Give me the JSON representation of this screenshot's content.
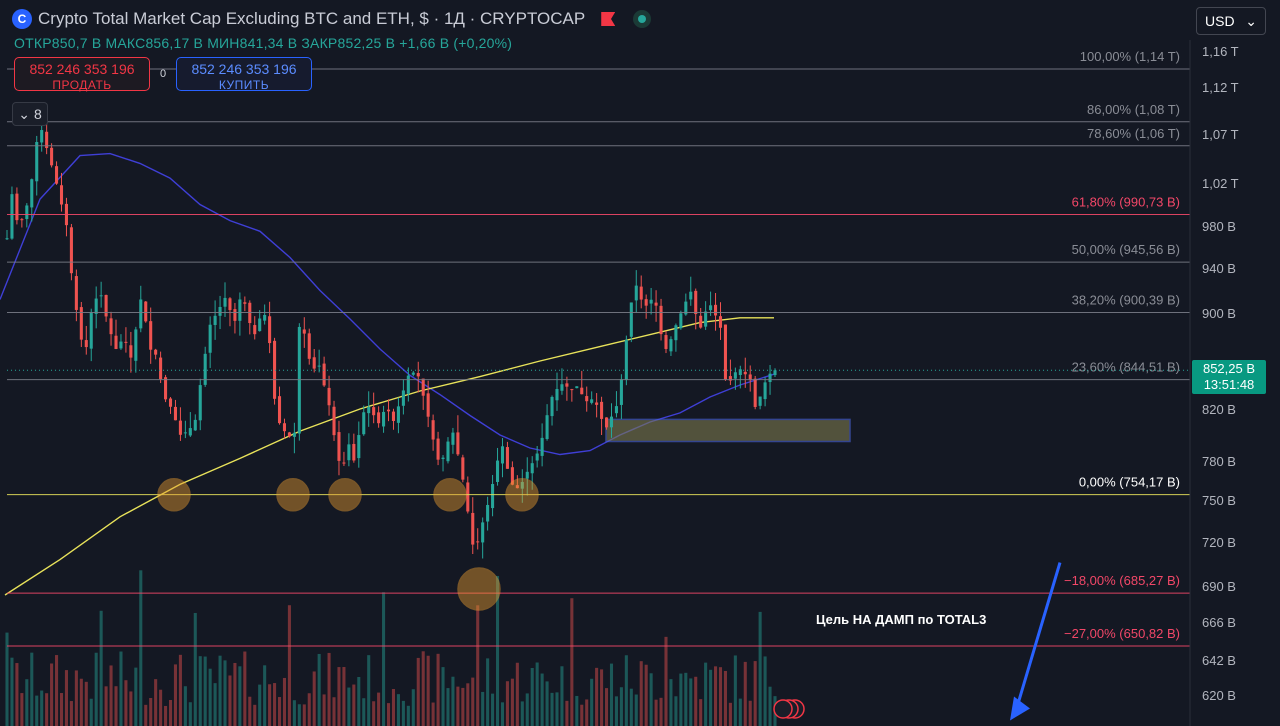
{
  "header": {
    "logo_glyph": "C",
    "title": "Crypto Total Market Cap Excluding BTC and ETH, $ · 1Д · CRYPTOCAP",
    "ohlc": {
      "open_label": "ОТКР",
      "open_value": "850,7 B",
      "high_label": "МАКС",
      "high_value": "856,17 B",
      "low_label": "МИН",
      "low_value": "841,34 B",
      "close_label": "ЗАКР",
      "close_value": "852,25 B",
      "change": "+1,66 B (+0,20%)"
    }
  },
  "trade": {
    "sell_price": "852 246 353 196",
    "sell_label": "ПРОДАТЬ",
    "buy_price": "852 246 353 196",
    "buy_label": "КУПИТЬ",
    "spread": "0"
  },
  "indicators_toggle": {
    "count": "8"
  },
  "currency": {
    "label": "USD"
  },
  "last_price": {
    "value": "852,25 B",
    "countdown": "13:51:48"
  },
  "colors": {
    "up": "#26a69a",
    "down": "#ef5350",
    "ma_fast": "#3f3fd6",
    "ma_slow": "#e8e25a",
    "fib_red": "#f24768",
    "background": "#141823"
  },
  "chart_data": {
    "type": "candlestick",
    "timeframe": "1Д",
    "unit": "B",
    "ylim": [
      605,
      1175
    ],
    "y_ticks": [
      {
        "value": 1160,
        "label": "1,16 T"
      },
      {
        "value": 1120,
        "label": "1,12 T"
      },
      {
        "value": 1070,
        "label": "1,07 T"
      },
      {
        "value": 1020,
        "label": "1,02 T"
      },
      {
        "value": 980,
        "label": "980 B"
      },
      {
        "value": 940,
        "label": "940 B"
      },
      {
        "value": 900,
        "label": "900 B"
      },
      {
        "value": 820,
        "label": "820 B"
      },
      {
        "value": 780,
        "label": "780 B"
      },
      {
        "value": 750,
        "label": "750 B"
      },
      {
        "value": 720,
        "label": "720 B"
      },
      {
        "value": 690,
        "label": "690 B"
      },
      {
        "value": 666,
        "label": "666 B"
      },
      {
        "value": 642,
        "label": "642 B"
      },
      {
        "value": 620,
        "label": "620 B"
      }
    ],
    "fib_levels": [
      {
        "label": "100,00% (1,14 T)",
        "value": 1140,
        "color": "#787b86"
      },
      {
        "label": "86,00% (1,08 T)",
        "value": 1083,
        "color": "#787b86"
      },
      {
        "label": "78,60% (1,06 T)",
        "value": 1058,
        "color": "#787b86"
      },
      {
        "label": "61,80% (990,73 B)",
        "value": 990.73,
        "color": "#f24768"
      },
      {
        "label": "50,00% (945,56 B)",
        "value": 945.56,
        "color": "#787b86"
      },
      {
        "label": "38,20% (900,39 B)",
        "value": 900.39,
        "color": "#787b86"
      },
      {
        "label": "23,60% (844,51 B)",
        "value": 844.51,
        "color": "#787b86"
      },
      {
        "label": "0,00% (754,17 B)",
        "value": 754.17,
        "color": "#e8e25a"
      },
      {
        "label": "−18,00% (685,27 B)",
        "value": 685.27,
        "color": "#f24768"
      },
      {
        "label": "−27,00% (650,82 B)",
        "value": 650.82,
        "color": "#f24768"
      }
    ],
    "price_line": 852.25,
    "candle_count": 156,
    "keypoints": [
      [
        0,
        912
      ],
      [
        6,
        960
      ],
      [
        12,
        1010
      ],
      [
        18,
        980
      ],
      [
        25,
        990
      ],
      [
        32,
        1025
      ],
      [
        36,
        1060
      ],
      [
        42,
        1075
      ],
      [
        48,
        1050
      ],
      [
        54,
        1030
      ],
      [
        60,
        1005
      ],
      [
        66,
        985
      ],
      [
        72,
        930
      ],
      [
        80,
        880
      ],
      [
        86,
        870
      ],
      [
        92,
        905
      ],
      [
        100,
        920
      ],
      [
        108,
        890
      ],
      [
        116,
        870
      ],
      [
        124,
        880
      ],
      [
        132,
        860
      ],
      [
        140,
        915
      ],
      [
        146,
        892
      ],
      [
        150,
        870
      ],
      [
        156,
        865
      ],
      [
        164,
        830
      ],
      [
        172,
        820
      ],
      [
        180,
        800
      ],
      [
        188,
        803
      ],
      [
        195,
        810
      ],
      [
        202,
        850
      ],
      [
        210,
        890
      ],
      [
        218,
        902
      ],
      [
        226,
        915
      ],
      [
        234,
        890
      ],
      [
        242,
        920
      ],
      [
        248,
        895
      ],
      [
        256,
        880
      ],
      [
        262,
        905
      ],
      [
        268,
        890
      ],
      [
        276,
        815
      ],
      [
        282,
        805
      ],
      [
        288,
        800
      ],
      [
        294,
        795
      ],
      [
        300,
        900
      ],
      [
        305,
        880
      ],
      [
        312,
        850
      ],
      [
        318,
        860
      ],
      [
        324,
        840
      ],
      [
        330,
        820
      ],
      [
        336,
        790
      ],
      [
        342,
        770
      ],
      [
        348,
        795
      ],
      [
        354,
        780
      ],
      [
        360,
        805
      ],
      [
        366,
        825
      ],
      [
        372,
        818
      ],
      [
        378,
        808
      ],
      [
        386,
        822
      ],
      [
        394,
        810
      ],
      [
        402,
        832
      ],
      [
        410,
        852
      ],
      [
        418,
        848
      ],
      [
        426,
        822
      ],
      [
        432,
        800
      ],
      [
        440,
        775
      ],
      [
        446,
        790
      ],
      [
        452,
        805
      ],
      [
        460,
        778
      ],
      [
        466,
        752
      ],
      [
        472,
        718
      ],
      [
        478,
        720
      ],
      [
        484,
        738
      ],
      [
        490,
        752
      ],
      [
        496,
        776
      ],
      [
        502,
        793
      ],
      [
        508,
        772
      ],
      [
        514,
        758
      ],
      [
        520,
        760
      ],
      [
        526,
        770
      ],
      [
        532,
        778
      ],
      [
        540,
        790
      ],
      [
        546,
        812
      ],
      [
        552,
        830
      ],
      [
        558,
        838
      ],
      [
        564,
        842
      ],
      [
        570,
        835
      ],
      [
        576,
        840
      ],
      [
        582,
        832
      ],
      [
        588,
        825
      ],
      [
        594,
        830
      ],
      [
        600,
        815
      ],
      [
        606,
        805
      ],
      [
        612,
        815
      ],
      [
        618,
        825
      ],
      [
        624,
        860
      ],
      [
        630,
        905
      ],
      [
        636,
        925
      ],
      [
        642,
        910
      ],
      [
        648,
        905
      ],
      [
        654,
        918
      ],
      [
        660,
        885
      ],
      [
        666,
        870
      ],
      [
        672,
        880
      ],
      [
        678,
        895
      ],
      [
        684,
        905
      ],
      [
        690,
        922
      ],
      [
        696,
        898
      ],
      [
        702,
        885
      ],
      [
        708,
        912
      ],
      [
        714,
        900
      ],
      [
        720,
        892
      ],
      [
        726,
        840
      ],
      [
        732,
        845
      ],
      [
        738,
        855
      ],
      [
        744,
        850
      ],
      [
        750,
        845
      ],
      [
        756,
        818
      ],
      [
        762,
        836
      ],
      [
        768,
        848
      ],
      [
        774,
        852.25
      ]
    ],
    "series": [
      {
        "type": "moving_average",
        "color": "#3f3fd6",
        "points": [
          [
            0,
            912
          ],
          [
            40,
            1005
          ],
          [
            80,
            1048
          ],
          [
            110,
            1050
          ],
          [
            140,
            1040
          ],
          [
            170,
            1025
          ],
          [
            200,
            1000
          ],
          [
            230,
            985
          ],
          [
            260,
            975
          ],
          [
            290,
            950
          ],
          [
            320,
            920
          ],
          [
            350,
            895
          ],
          [
            380,
            870
          ],
          [
            410,
            848
          ],
          [
            440,
            832
          ],
          [
            470,
            815
          ],
          [
            500,
            800
          ],
          [
            530,
            790
          ],
          [
            560,
            785
          ],
          [
            590,
            788
          ],
          [
            620,
            800
          ],
          [
            650,
            810
          ],
          [
            680,
            817
          ],
          [
            710,
            830
          ],
          [
            740,
            840
          ],
          [
            774,
            849
          ]
        ]
      },
      {
        "type": "moving_average",
        "color": "#e8e25a",
        "points": [
          [
            5,
            684
          ],
          [
            60,
            708
          ],
          [
            120,
            738
          ],
          [
            180,
            762
          ],
          [
            240,
            782
          ],
          [
            300,
            803
          ],
          [
            360,
            820
          ],
          [
            420,
            835
          ],
          [
            480,
            847
          ],
          [
            540,
            860
          ],
          [
            600,
            872
          ],
          [
            660,
            884
          ],
          [
            700,
            892
          ],
          [
            740,
            896
          ],
          [
            774,
            896
          ]
        ]
      }
    ],
    "support_zone": {
      "x_start": 606,
      "x_end": 850,
      "top": 812,
      "bottom": 795
    },
    "touch_markers": [
      {
        "x": 174,
        "value": 754
      },
      {
        "x": 293,
        "value": 754
      },
      {
        "x": 345,
        "value": 754
      },
      {
        "x": 450,
        "value": 754
      },
      {
        "x": 522,
        "value": 754
      },
      {
        "x": 479,
        "value": 688
      }
    ],
    "annotation": {
      "text": "Цель  НА ДАМП по TOTAL3",
      "arrow_from": [
        1060,
        706
      ],
      "arrow_to": [
        1010,
        604
      ]
    }
  }
}
